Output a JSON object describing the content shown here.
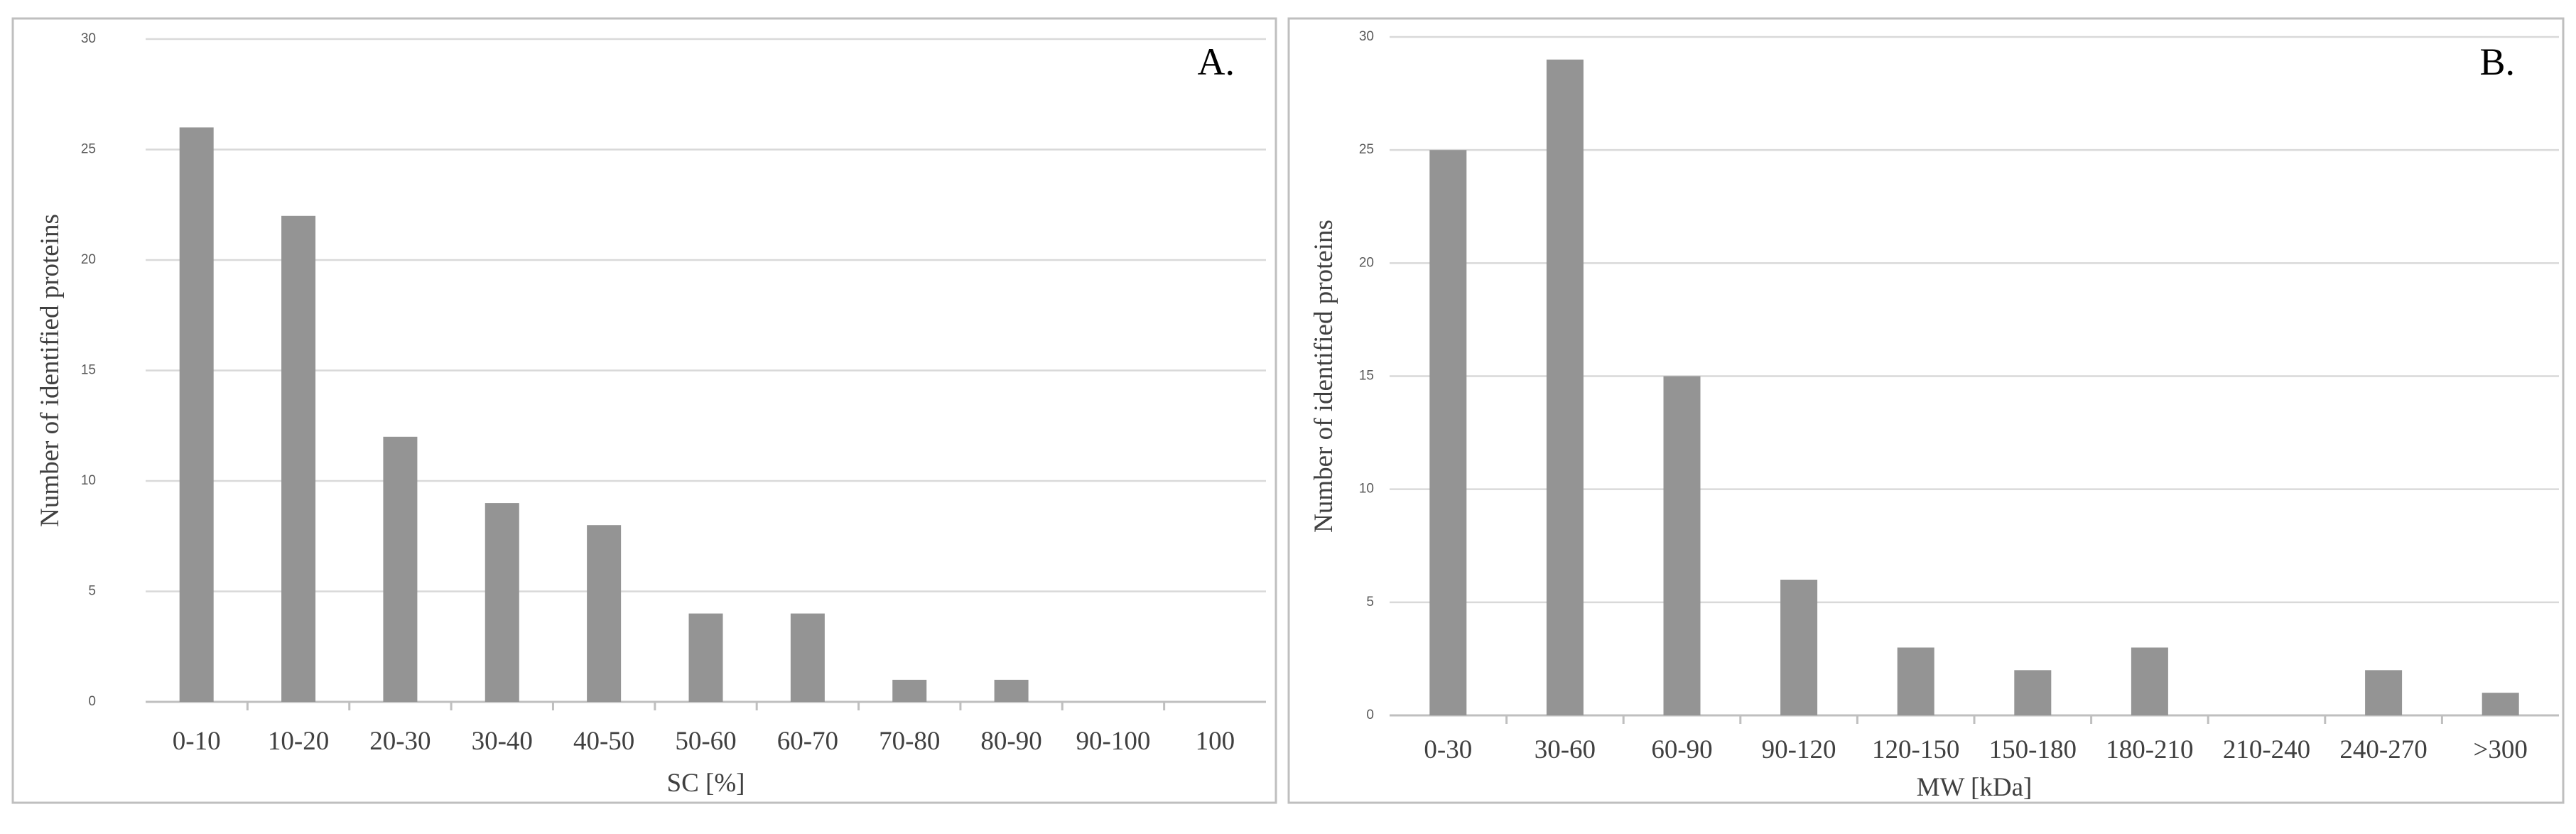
{
  "chart_data": [
    {
      "type": "bar",
      "panel_label": "A.",
      "categories": [
        "0-10",
        "10-20",
        "20-30",
        "30-40",
        "40-50",
        "50-60",
        "60-70",
        "70-80",
        "80-90",
        "90-100",
        "100"
      ],
      "values": [
        26,
        22,
        12,
        9,
        8,
        4,
        4,
        1,
        1,
        0,
        0
      ],
      "xlabel": "SC [%]",
      "ylabel": "Number of identified proteins",
      "ylim": [
        0,
        30
      ],
      "yticks": [
        0,
        5,
        10,
        15,
        20,
        25,
        30
      ],
      "grid": true,
      "legend": "none",
      "bar_color": "#949494"
    },
    {
      "type": "bar",
      "panel_label": "B.",
      "categories": [
        "0-30",
        "30-60",
        "60-90",
        "90-120",
        "120-150",
        "150-180",
        "180-210",
        "210-240",
        "240-270",
        ">300"
      ],
      "values": [
        25,
        29,
        15,
        6,
        3,
        2,
        3,
        0,
        2,
        1
      ],
      "xlabel": "MW [kDa]",
      "ylabel": "Number of identified proteins",
      "ylim": [
        0,
        30
      ],
      "yticks": [
        0,
        5,
        10,
        15,
        20,
        25,
        30
      ],
      "grid": true,
      "legend": "none",
      "bar_color": "#949494"
    }
  ]
}
